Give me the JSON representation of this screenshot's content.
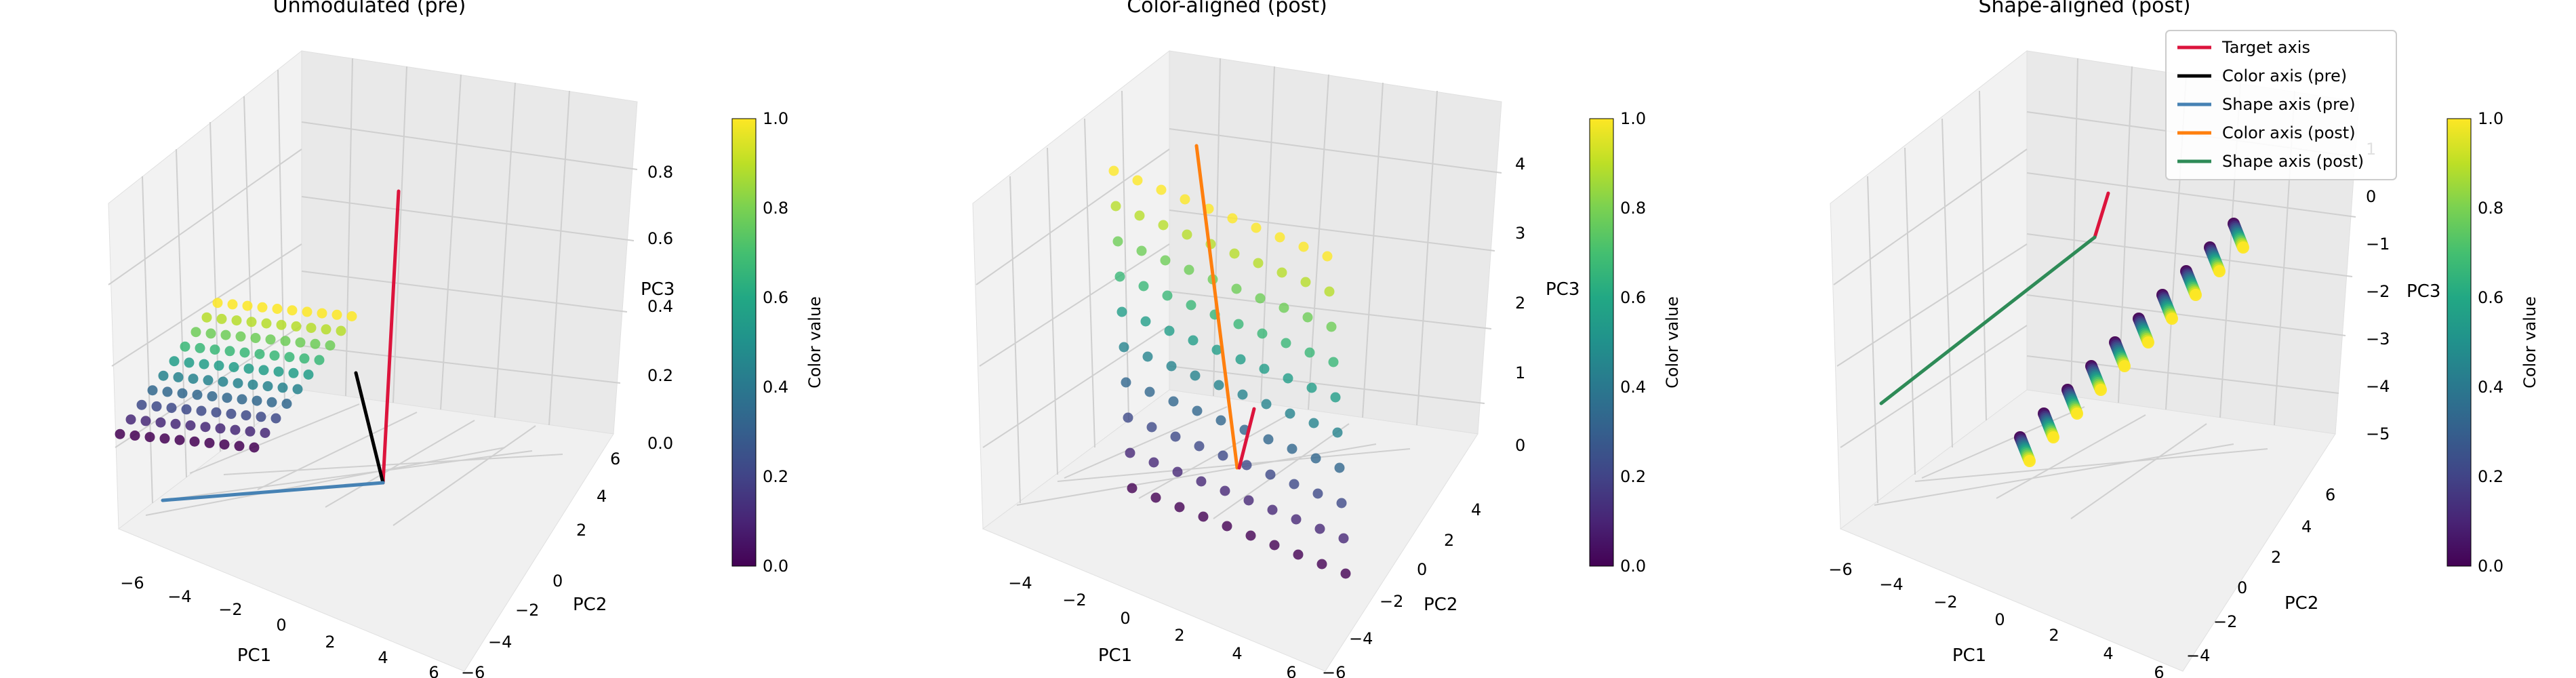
{
  "figure": {
    "colorbar_label": "Color value",
    "colorbar_ticks": [
      "0.0",
      "0.2",
      "0.4",
      "0.6",
      "0.8",
      "1.0"
    ]
  },
  "legend": {
    "entries": [
      {
        "label": "Target axis",
        "color": "#dc143c"
      },
      {
        "label": "Color axis (pre)",
        "color": "#000000"
      },
      {
        "label": "Shape axis (pre)",
        "color": "#4682b4"
      },
      {
        "label": "Color axis (post)",
        "color": "#ff7f0e"
      },
      {
        "label": "Shape axis (post)",
        "color": "#2e8b57"
      }
    ]
  },
  "chart_data": [
    {
      "type": "scatter3d",
      "title": "Unmodulated (pre)",
      "xlabel": "PC1",
      "ylabel": "PC2",
      "zlabel": "PC3",
      "xticks": [
        "−6",
        "−4",
        "−2",
        "0",
        "2",
        "4",
        "6"
      ],
      "yticks": [
        "−6",
        "−4",
        "−2",
        "0",
        "2",
        "4",
        "6"
      ],
      "zticks": [
        "0.0",
        "0.2",
        "0.4",
        "0.6",
        "0.8"
      ],
      "points": "10×10 grid in the PC1–PC2 plane at PC3 ≈ 0, colored by color value 0 to 1",
      "lines": [
        {
          "name": "Target axis",
          "color": "#dc143c"
        },
        {
          "name": "Color axis (pre)",
          "color": "#000000"
        },
        {
          "name": "Shape axis (pre)",
          "color": "#4682b4"
        }
      ]
    },
    {
      "type": "scatter3d",
      "title": "Color-aligned (post)",
      "xlabel": "PC1",
      "ylabel": "PC2",
      "zlabel": "PC3",
      "xticks": [
        "−4",
        "−2",
        "0",
        "2",
        "4",
        "6"
      ],
      "yticks": [
        "−6",
        "−4",
        "−2",
        "0",
        "2",
        "4"
      ],
      "zticks": [
        "0",
        "1",
        "2",
        "3",
        "4"
      ],
      "points": "10×10 grid tilted so that PC3 increases with color value (0 to 4)",
      "lines": [
        {
          "name": "Color axis (post)",
          "color": "#ff7f0e"
        },
        {
          "name": "Target axis",
          "color": "#dc143c"
        }
      ]
    },
    {
      "type": "scatter3d",
      "title": "Shape-aligned (post)",
      "xlabel": "PC1",
      "ylabel": "PC2",
      "zlabel": "PC3",
      "xticks": [
        "−6",
        "−4",
        "−2",
        "0",
        "2",
        "4",
        "6"
      ],
      "yticks": [
        "−4",
        "−2",
        "0",
        "2",
        "4",
        "6"
      ],
      "zticks": [
        "−5",
        "−4",
        "−3",
        "−2",
        "−1",
        "0",
        "1"
      ],
      "points": "10 short strands, each spanning color value 0 to 1, arranged diagonally",
      "lines": [
        {
          "name": "Target axis",
          "color": "#dc143c"
        },
        {
          "name": "Shape axis (post)",
          "color": "#2e8b57"
        }
      ]
    }
  ]
}
